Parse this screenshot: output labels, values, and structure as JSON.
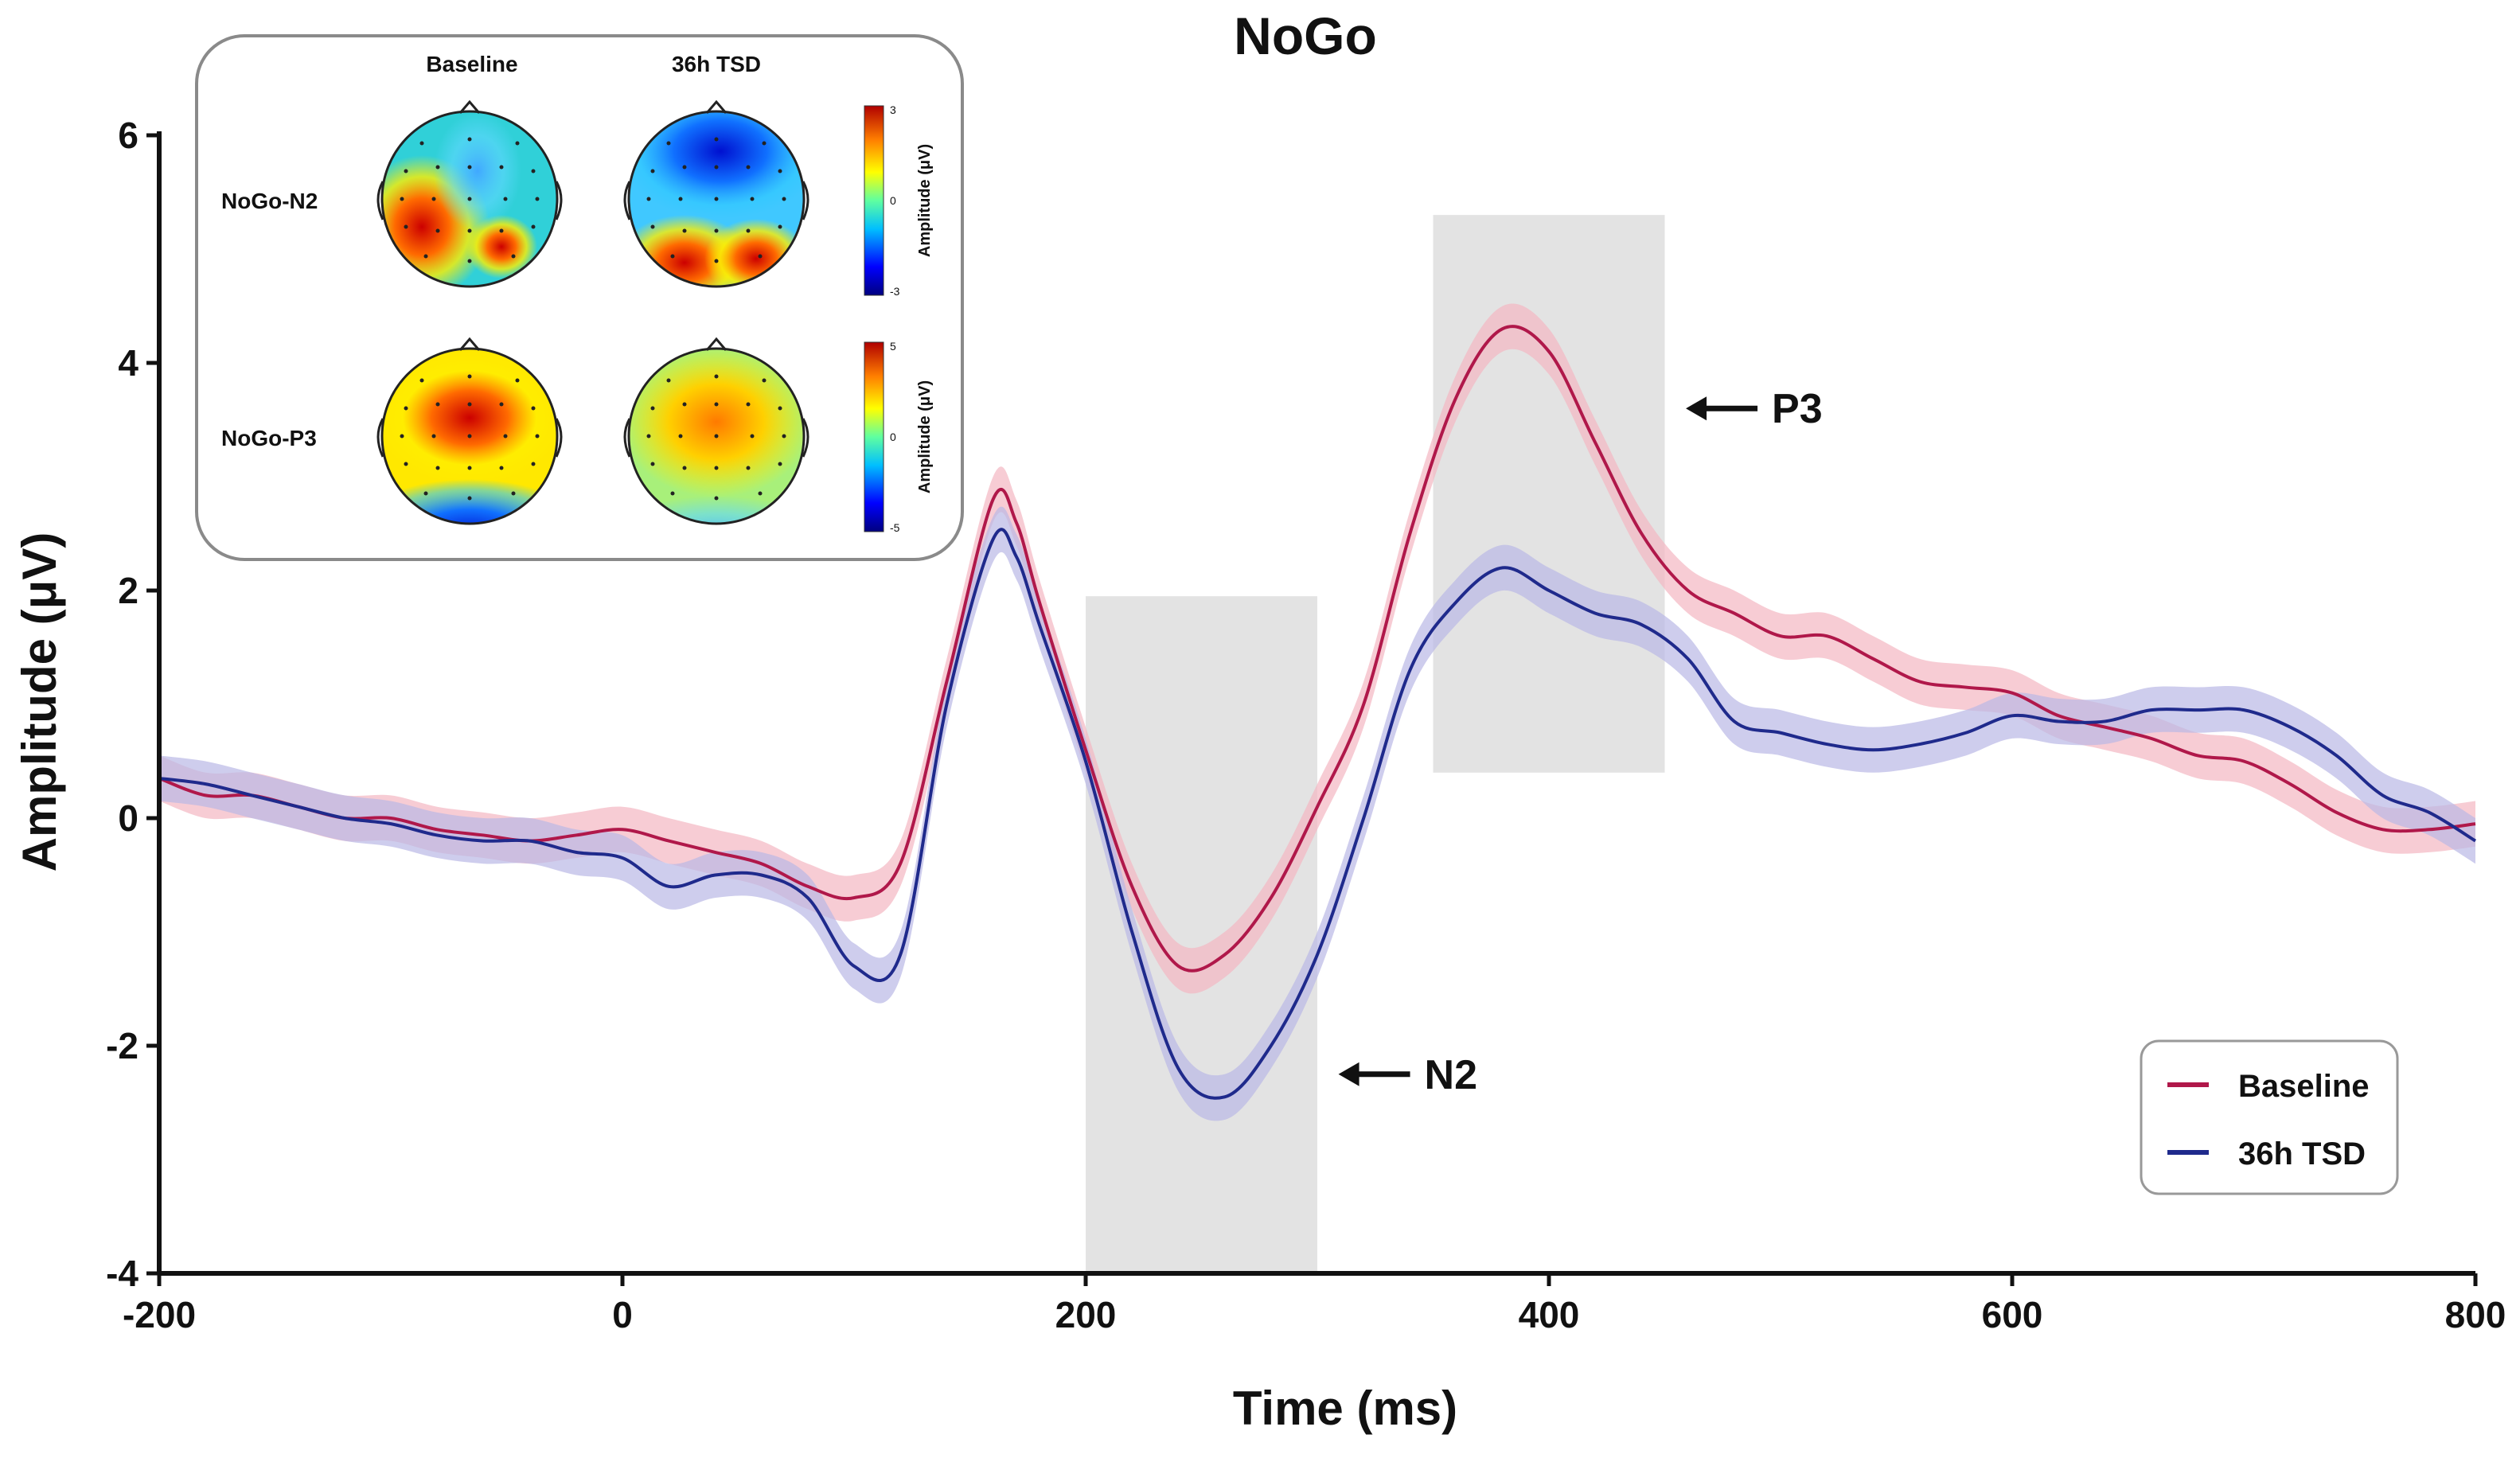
{
  "chart_data": {
    "type": "line",
    "title": "NoGo",
    "xlabel": "Time (ms)",
    "ylabel": "Amplitude (μV)",
    "xlim": [
      -200,
      800
    ],
    "ylim": [
      -4,
      6
    ],
    "xticks": [
      -200,
      0,
      200,
      400,
      600,
      800
    ],
    "yticks": [
      -4,
      -2,
      0,
      2,
      4,
      6
    ],
    "x": [
      -200,
      -180,
      -160,
      -140,
      -120,
      -100,
      -80,
      -60,
      -40,
      -20,
      0,
      20,
      40,
      60,
      80,
      100,
      120,
      140,
      160,
      170,
      180,
      200,
      220,
      240,
      260,
      280,
      300,
      320,
      340,
      360,
      380,
      400,
      420,
      440,
      460,
      480,
      500,
      520,
      540,
      560,
      580,
      600,
      620,
      640,
      660,
      680,
      700,
      720,
      740,
      760,
      780,
      800
    ],
    "series": [
      {
        "name": "Baseline",
        "color": "#b0184a",
        "band_color": "#f4b6c2",
        "values": [
          0.35,
          0.2,
          0.2,
          0.1,
          0.0,
          0.0,
          -0.1,
          -0.15,
          -0.2,
          -0.15,
          -0.1,
          -0.2,
          -0.3,
          -0.4,
          -0.6,
          -0.7,
          -0.4,
          1.2,
          2.8,
          2.6,
          1.9,
          0.6,
          -0.6,
          -1.3,
          -1.2,
          -0.7,
          0.1,
          1.0,
          2.5,
          3.7,
          4.3,
          4.1,
          3.3,
          2.5,
          2.0,
          1.8,
          1.6,
          1.6,
          1.4,
          1.2,
          1.15,
          1.1,
          0.9,
          0.8,
          0.7,
          0.55,
          0.5,
          0.3,
          0.05,
          -0.1,
          -0.1,
          -0.05
        ]
      },
      {
        "name": "36h TSD",
        "color": "#1f2a8c",
        "band_color": "#b9b8e6",
        "values": [
          0.35,
          0.3,
          0.2,
          0.1,
          0.0,
          -0.05,
          -0.15,
          -0.2,
          -0.2,
          -0.3,
          -0.35,
          -0.6,
          -0.5,
          -0.5,
          -0.7,
          -1.3,
          -1.2,
          1.0,
          2.45,
          2.3,
          1.7,
          0.5,
          -1.0,
          -2.2,
          -2.45,
          -2.0,
          -1.2,
          0.0,
          1.3,
          1.9,
          2.2,
          2.0,
          1.8,
          1.7,
          1.4,
          0.85,
          0.75,
          0.65,
          0.6,
          0.65,
          0.75,
          0.9,
          0.85,
          0.85,
          0.95,
          0.95,
          0.95,
          0.8,
          0.55,
          0.2,
          0.05,
          -0.2
        ]
      }
    ],
    "shaded_windows": [
      {
        "x": [
          200,
          300
        ],
        "y": [
          -4,
          1.95
        ]
      },
      {
        "x": [
          350,
          450
        ],
        "y": [
          0.4,
          5.3
        ]
      }
    ],
    "annotations": [
      {
        "label": "N2",
        "x": 305,
        "y": -2.25
      },
      {
        "label": "P3",
        "x": 455,
        "y": 3.6
      }
    ],
    "legend": {
      "placement": "bottom-right",
      "entries": [
        "Baseline",
        "36h TSD"
      ]
    }
  },
  "inset": {
    "column_labels": [
      "Baseline",
      "36h TSD"
    ],
    "row_labels": [
      "NoGo-N2",
      "NoGo-P3"
    ],
    "colorbars": [
      {
        "label": "Amplitude (μV)",
        "max": "3",
        "mid": "0",
        "min": "-3"
      },
      {
        "label": "Amplitude (μV)",
        "max": "5",
        "mid": "0",
        "min": "-5"
      }
    ],
    "colormap": [
      "#00007f",
      "#0000ff",
      "#00bfff",
      "#5fffa0",
      "#ffff00",
      "#ff7f00",
      "#e00000",
      "#7f0000"
    ]
  }
}
